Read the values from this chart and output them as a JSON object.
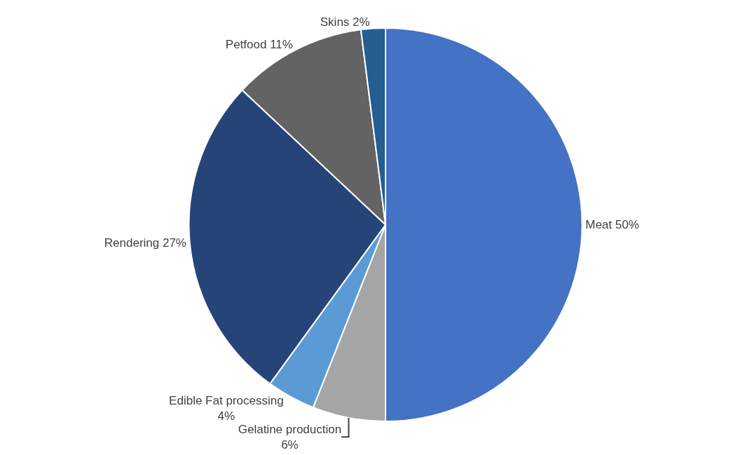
{
  "chart_data": {
    "type": "pie",
    "categories": [
      "Meat",
      "Gelatine production",
      "Edible Fat processing",
      "Rendering",
      "Petfood",
      "Skins"
    ],
    "values": [
      50,
      6,
      4,
      27,
      11,
      2
    ],
    "value_labels": [
      "50%",
      "6%",
      "4%",
      "27%",
      "11%",
      "2%"
    ],
    "colors": [
      "#4472c4",
      "#a5a5a5",
      "#5b9bd5",
      "#264478",
      "#636363",
      "#255e91"
    ],
    "legend": false
  }
}
